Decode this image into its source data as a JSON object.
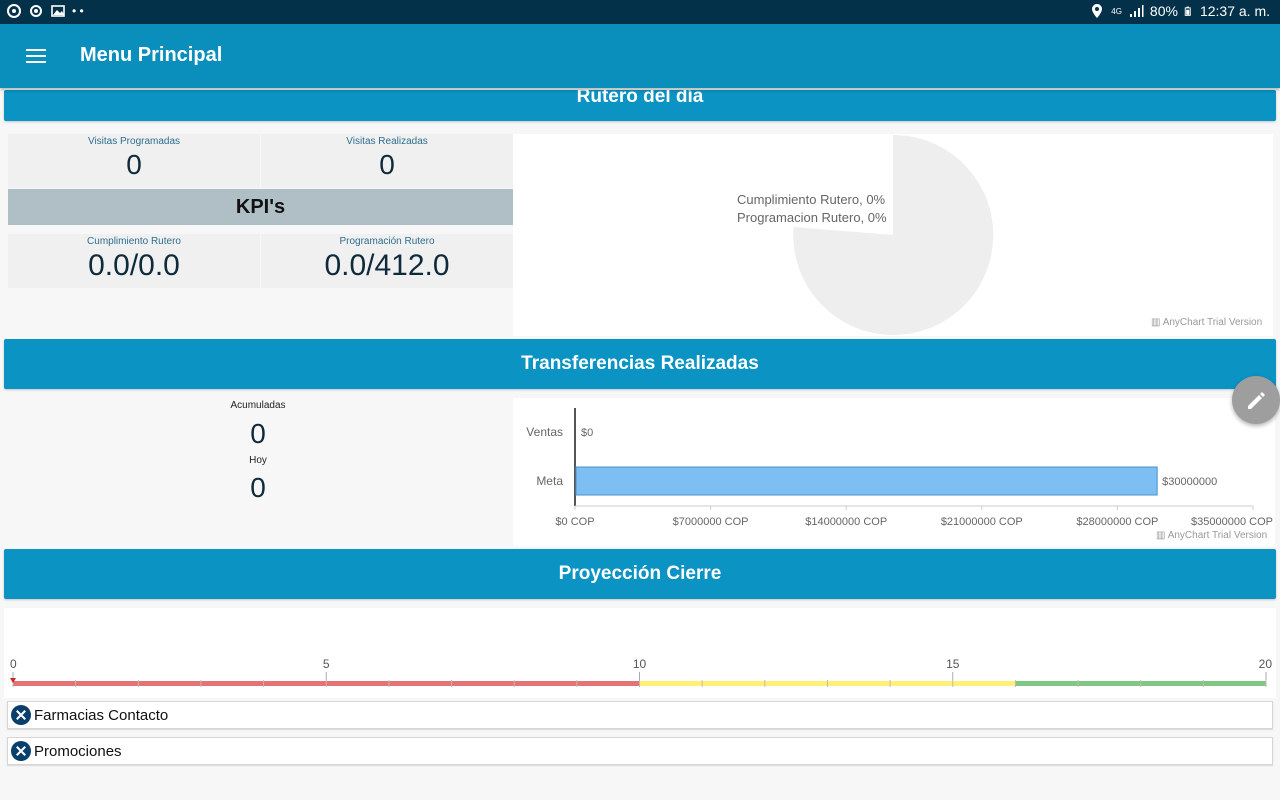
{
  "status_bar": {
    "network": "4G",
    "battery": "80%",
    "time": "12:37 a. m."
  },
  "app_bar": {
    "title": "Menu Principal"
  },
  "rutero": {
    "banner": "Rutero del día",
    "visitas_programadas_label": "Visitas Programadas",
    "visitas_programadas_value": "0",
    "visitas_realizadas_label": "Visitas Realizadas",
    "visitas_realizadas_value": "0",
    "kpi_title": "KPI's",
    "cumplimiento_label": "Cumplimiento Rutero",
    "cumplimiento_value": "0.0/0.0",
    "programacion_label": "Programación Rutero",
    "programacion_value": "0.0/412.0",
    "pie_legend": [
      "Cumplimiento Rutero, 0%",
      "Programacion Rutero, 0%"
    ],
    "watermark": "AnyChart Trial Version"
  },
  "transferencias": {
    "banner": "Transferencias Realizadas",
    "acumuladas_label": "Acumuladas",
    "acumuladas_value": "0",
    "hoy_label": "Hoy",
    "hoy_value": "0",
    "watermark": "AnyChart Trial Version"
  },
  "proyeccion": {
    "banner": "Proyección Cierre",
    "scale_labels": [
      "0",
      "5",
      "10",
      "15",
      "20"
    ]
  },
  "list_items": [
    {
      "label": "Farmacias Contacto"
    },
    {
      "label": "Promociones"
    }
  ],
  "colors": {
    "primary": "#0a93c3",
    "status_bar": "#04314a",
    "bar_fill": "#7dbff2",
    "gauge_red": "#e57373",
    "gauge_yellow": "#fff176",
    "gauge_green": "#81c784"
  },
  "icons": [
    "menu-icon",
    "location-icon",
    "signal-icon",
    "battery-icon",
    "edit-icon",
    "close-icon",
    "chart-icon"
  ],
  "chart_data": [
    {
      "type": "pie",
      "labels": [
        "Cumplimiento Rutero",
        "Programacion Rutero"
      ],
      "values": [
        0,
        0
      ],
      "legend": "center-left"
    },
    {
      "type": "bar",
      "orientation": "horizontal",
      "categories": [
        "Ventas",
        "Meta"
      ],
      "values": [
        0,
        30000000
      ],
      "data_labels": [
        "$0",
        "$30000000"
      ],
      "x_ticks": [
        "$0 COP",
        "$7000000 COP",
        "$14000000 COP",
        "$21000000 COP",
        "$28000000 COP",
        "$35000000 COP"
      ],
      "xlim": [
        0,
        35000000
      ]
    },
    {
      "type": "bar",
      "orientation": "linear-gauge",
      "scale": [
        0,
        20
      ],
      "ranges": [
        {
          "from": 0,
          "to": 10,
          "color": "red"
        },
        {
          "from": 10,
          "to": 16,
          "color": "yellow"
        },
        {
          "from": 16,
          "to": 20,
          "color": "green"
        }
      ],
      "value": 0
    }
  ]
}
